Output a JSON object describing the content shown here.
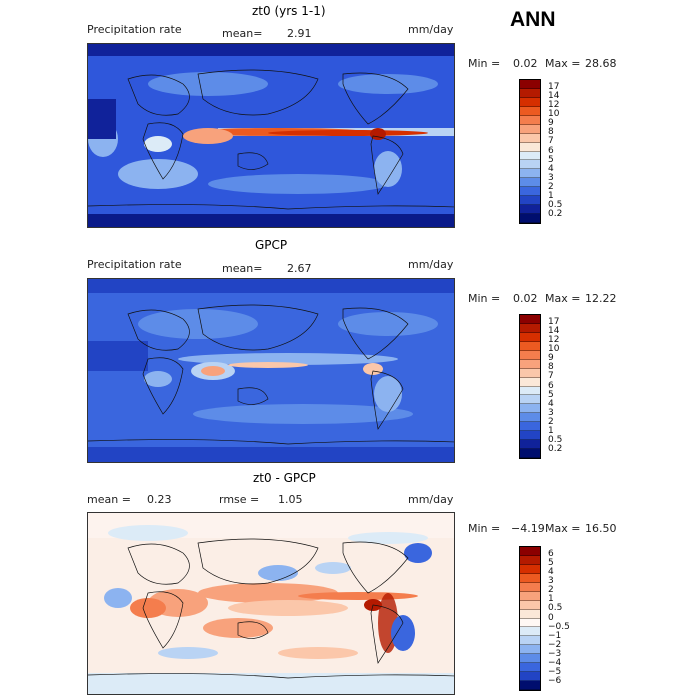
{
  "season": "ANN",
  "panels": [
    {
      "title": "zt0 (yrs 1-1)",
      "left_label": "Precipitation rate",
      "center_label": "mean=",
      "center_value": "2.91",
      "units": "mm/day",
      "min_label": "Min =",
      "min_value": "0.02",
      "max_label": "Max =",
      "max_value": "28.68",
      "levels": [
        "17",
        "14",
        "12",
        "10",
        "9",
        "8",
        "7",
        "6",
        "5",
        "4",
        "3",
        "2",
        "1",
        "0.5",
        "0.2"
      ],
      "colors": [
        "#8b0000",
        "#b41a00",
        "#d62f00",
        "#ec5a21",
        "#f47d4d",
        "#f8a27c",
        "#fbc7aa",
        "#fbe8d8",
        "#dcebf7",
        "#b9d3f4",
        "#8cb3f0",
        "#5d8ce8",
        "#3a66de",
        "#2244c4",
        "#10229a",
        "#000e6e"
      ]
    },
    {
      "title": "GPCP",
      "left_label": "Precipitation rate",
      "center_label": "mean=",
      "center_value": "2.67",
      "units": "mm/day",
      "min_label": "Min =",
      "min_value": "0.02",
      "max_label": "Max =",
      "max_value": "12.22",
      "levels": [
        "17",
        "14",
        "12",
        "10",
        "9",
        "8",
        "7",
        "6",
        "5",
        "4",
        "3",
        "2",
        "1",
        "0.5",
        "0.2"
      ],
      "colors": [
        "#8b0000",
        "#b41a00",
        "#d62f00",
        "#ec5a21",
        "#f47d4d",
        "#f8a27c",
        "#fbc7aa",
        "#fbe8d8",
        "#dcebf7",
        "#b9d3f4",
        "#8cb3f0",
        "#5d8ce8",
        "#3a66de",
        "#2244c4",
        "#10229a",
        "#000e6e"
      ]
    },
    {
      "title": "zt0 - GPCP",
      "left_label": "mean =",
      "left_value": "0.23",
      "center_label": "rmse =",
      "center_value": "1.05",
      "units": "mm/day",
      "min_label": "Min =",
      "min_value": "−4.19",
      "max_label": "Max =",
      "max_value": "16.50",
      "levels": [
        "6",
        "5",
        "4",
        "3",
        "2",
        "1",
        "0.5",
        "0",
        "−0.5",
        "−1",
        "−2",
        "−3",
        "−4",
        "−5",
        "−6"
      ],
      "colors": [
        "#8b0000",
        "#b41a00",
        "#d62f00",
        "#ec5a21",
        "#f47d4d",
        "#f8a27c",
        "#fbc7aa",
        "#fbe8d8",
        "#fff8f4",
        "#dcebf7",
        "#b9d3f4",
        "#8cb3f0",
        "#5d8ce8",
        "#3a66de",
        "#2244c4",
        "#000e6e"
      ]
    }
  ]
}
